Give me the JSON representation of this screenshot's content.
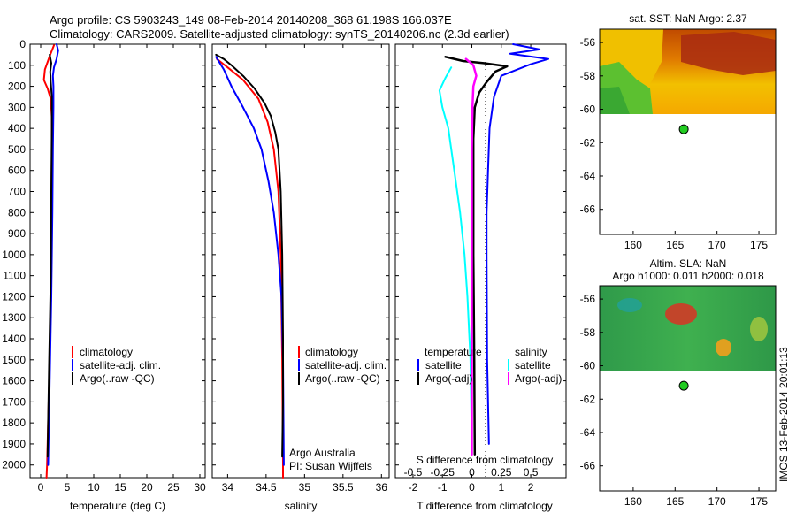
{
  "header": {
    "line1": "Argo profile: CS 5903243_149 08-Feb-2014 20140208_368 61.198S 166.037E",
    "line2": "Climatology: CARS2009. Satellite-adjusted climatology: synTS_20140206.nc (2.3d earlier)"
  },
  "colors": {
    "climatology": "#ff0000",
    "satellite": "#0000ff",
    "argo": "#000000",
    "t_satellite": "#00ffff",
    "s_argo_adj": "#ff00ff",
    "float_marker": "#22cc22"
  },
  "legends": {
    "profile_items": [
      {
        "label": "climatology",
        "color": "#ff0000"
      },
      {
        "label": "satellite-adj. clim.",
        "color": "#0000ff"
      },
      {
        "label": "Argo(..raw -QC)",
        "color": "#000000"
      }
    ],
    "diff_headers": {
      "temperature": "temperature",
      "salinity": "salinity"
    },
    "diff_items": [
      {
        "label": "satellite",
        "color": "#0000ff",
        "group": "temperature"
      },
      {
        "label": "Argo(-adj)",
        "color": "#000000",
        "group": "temperature"
      },
      {
        "label": "satellite",
        "color": "#00ffff",
        "group": "salinity"
      },
      {
        "label": "Argo(-adj)",
        "color": "#ff00ff",
        "group": "salinity"
      }
    ]
  },
  "credits": {
    "line1": "Argo Australia",
    "line2": "PI: Susan Wijffels",
    "stamp": "IMOS 13-Feb-2014 20:01:13"
  },
  "chart_data": [
    {
      "type": "line",
      "name": "temperature-profile",
      "xlabel": "temperature (deg C)",
      "ylabel": "",
      "xlim": [
        -2,
        31
      ],
      "ylim": [
        2060,
        0
      ],
      "xticks": [
        0,
        5,
        10,
        15,
        20,
        25,
        30
      ],
      "yticks": [
        0,
        100,
        200,
        300,
        400,
        500,
        600,
        700,
        800,
        900,
        1000,
        1100,
        1200,
        1300,
        1400,
        1500,
        1600,
        1700,
        1800,
        1900,
        2000
      ],
      "series": [
        {
          "name": "climatology",
          "color": "#ff0000",
          "width": 2,
          "points": [
            [
              2.5,
              5
            ],
            [
              1.8,
              50
            ],
            [
              0.8,
              120
            ],
            [
              0.6,
              170
            ],
            [
              1.3,
              210
            ],
            [
              1.9,
              260
            ],
            [
              2.1,
              350
            ],
            [
              2.1,
              500
            ],
            [
              2.0,
              800
            ],
            [
              1.9,
              1200
            ],
            [
              1.6,
              1600
            ],
            [
              1.2,
              2000
            ],
            [
              1.1,
              2060
            ]
          ]
        },
        {
          "name": "satellite-adj. clim.",
          "color": "#0000ff",
          "width": 2,
          "points": [
            [
              3.0,
              0
            ],
            [
              3.3,
              30
            ],
            [
              3.0,
              70
            ],
            [
              2.5,
              110
            ],
            [
              2.3,
              150
            ],
            [
              2.4,
              200
            ],
            [
              2.4,
              300
            ],
            [
              2.3,
              500
            ],
            [
              2.2,
              800
            ],
            [
              2.0,
              1200
            ],
            [
              1.7,
              1600
            ],
            [
              1.4,
              2000
            ]
          ]
        },
        {
          "name": "Argo(..raw -QC)",
          "color": "#000000",
          "width": 2,
          "points": [
            [
              1.7,
              50
            ],
            [
              2.0,
              90
            ],
            [
              1.8,
              130
            ],
            [
              1.9,
              180
            ],
            [
              2.1,
              250
            ],
            [
              2.1,
              400
            ],
            [
              2.0,
              700
            ],
            [
              1.9,
              1100
            ],
            [
              1.6,
              1500
            ],
            [
              1.4,
              1800
            ],
            [
              1.3,
              1960
            ]
          ]
        }
      ]
    },
    {
      "type": "line",
      "name": "salinity-profile",
      "xlabel": "salinity",
      "xlim": [
        33.8,
        36.1
      ],
      "ylim": [
        2060,
        0
      ],
      "xticks": [
        34,
        34.5,
        35,
        35.5,
        36
      ],
      "series": [
        {
          "name": "climatology",
          "color": "#ff0000",
          "width": 2,
          "points": [
            [
              33.86,
              70
            ],
            [
              34.0,
              110
            ],
            [
              34.2,
              170
            ],
            [
              34.4,
              260
            ],
            [
              34.52,
              370
            ],
            [
              34.6,
              500
            ],
            [
              34.66,
              700
            ],
            [
              34.69,
              1000
            ],
            [
              34.71,
              1500
            ],
            [
              34.72,
              2000
            ],
            [
              34.72,
              2060
            ]
          ]
        },
        {
          "name": "satellite-adj. clim.",
          "color": "#0000ff",
          "width": 2,
          "points": [
            [
              33.85,
              60
            ],
            [
              33.95,
              120
            ],
            [
              34.05,
              200
            ],
            [
              34.2,
              300
            ],
            [
              34.34,
              400
            ],
            [
              34.44,
              500
            ],
            [
              34.53,
              650
            ],
            [
              34.6,
              800
            ],
            [
              34.66,
              1000
            ],
            [
              34.7,
              1200
            ],
            [
              34.72,
              1500
            ],
            [
              34.73,
              2000
            ]
          ]
        },
        {
          "name": "Argo(..raw -QC)",
          "color": "#000000",
          "width": 2,
          "points": [
            [
              33.85,
              50
            ],
            [
              33.95,
              70
            ],
            [
              34.05,
              100
            ],
            [
              34.2,
              150
            ],
            [
              34.35,
              210
            ],
            [
              34.48,
              280
            ],
            [
              34.56,
              340
            ],
            [
              34.62,
              420
            ],
            [
              34.66,
              500
            ],
            [
              34.69,
              700
            ],
            [
              34.71,
              1000
            ],
            [
              34.72,
              1400
            ],
            [
              34.72,
              1700
            ],
            [
              34.71,
              1960
            ]
          ]
        }
      ]
    },
    {
      "type": "line",
      "name": "difference-profile",
      "xlabel": "T difference from climatology",
      "top_label": "S difference from climatology",
      "xlim": [
        -2.6,
        3.2
      ],
      "ylim": [
        2060,
        0
      ],
      "xticks": [
        -2,
        -1,
        0,
        1,
        2
      ],
      "top_ticks": [
        -0.5,
        -0.25,
        0,
        0.25,
        0.5
      ],
      "series": [
        {
          "name": "temperature satellite",
          "color": "#0000ff",
          "width": 2,
          "points": [
            [
              1.4,
              0
            ],
            [
              2.3,
              25
            ],
            [
              1.3,
              45
            ],
            [
              2.6,
              70
            ],
            [
              2.0,
              95
            ],
            [
              1.0,
              150
            ],
            [
              0.75,
              250
            ],
            [
              0.6,
              400
            ],
            [
              0.55,
              600
            ],
            [
              0.5,
              800
            ],
            [
              0.5,
              1000
            ],
            [
              0.52,
              1500
            ],
            [
              0.58,
              1900
            ]
          ]
        },
        {
          "name": "temperature Argo(-adj)",
          "color": "#000000",
          "width": 2.5,
          "points": [
            [
              -0.9,
              60
            ],
            [
              -0.3,
              80
            ],
            [
              0.4,
              90
            ],
            [
              1.2,
              105
            ],
            [
              0.8,
              130
            ],
            [
              0.5,
              180
            ],
            [
              0.25,
              230
            ],
            [
              0.1,
              300
            ],
            [
              0.05,
              450
            ],
            [
              0.05,
              700
            ],
            [
              0.05,
              1000
            ],
            [
              0.08,
              1500
            ],
            [
              0.1,
              1950
            ]
          ]
        },
        {
          "name": "salinity satellite",
          "color": "#00ffff",
          "width": 2,
          "points": [
            [
              -0.7,
              110
            ],
            [
              -0.9,
              160
            ],
            [
              -1.1,
              220
            ],
            [
              -1.0,
              300
            ],
            [
              -0.8,
              400
            ],
            [
              -0.6,
              600
            ],
            [
              -0.4,
              800
            ],
            [
              -0.25,
              1000
            ],
            [
              -0.15,
              1200
            ],
            [
              -0.05,
              1500
            ],
            [
              0.0,
              1900
            ]
          ]
        },
        {
          "name": "salinity Argo(-adj)",
          "color": "#ff00ff",
          "width": 2.5,
          "points": [
            [
              -0.2,
              70
            ],
            [
              0.05,
              100
            ],
            [
              0.15,
              150
            ],
            [
              0.05,
              200
            ],
            [
              0.02,
              300
            ],
            [
              0.0,
              500
            ],
            [
              0.0,
              1000
            ],
            [
              0.0,
              1500
            ],
            [
              0.0,
              1950
            ]
          ]
        }
      ]
    },
    {
      "type": "heatmap",
      "name": "sst-map",
      "title": "sat. SST: NaN Argo: 2.37",
      "xlim": [
        156,
        177
      ],
      "ylim": [
        -67.5,
        -55.2
      ],
      "xticks": [
        160,
        165,
        170,
        175
      ],
      "yticks": [
        -56,
        -58,
        -60,
        -62,
        -64,
        -66
      ],
      "float_position": {
        "lon": 166.037,
        "lat": -61.198
      }
    },
    {
      "type": "heatmap",
      "name": "sla-map",
      "title": "Altim. SLA: NaN",
      "subtitle": "Argo h1000: 0.011 h2000: 0.018",
      "xlim": [
        156,
        177
      ],
      "ylim": [
        -67.5,
        -55.2
      ],
      "xticks": [
        160,
        165,
        170,
        175
      ],
      "yticks": [
        -56,
        -58,
        -60,
        -62,
        -64,
        -66
      ],
      "float_position": {
        "lon": 166.037,
        "lat": -61.198
      }
    }
  ]
}
